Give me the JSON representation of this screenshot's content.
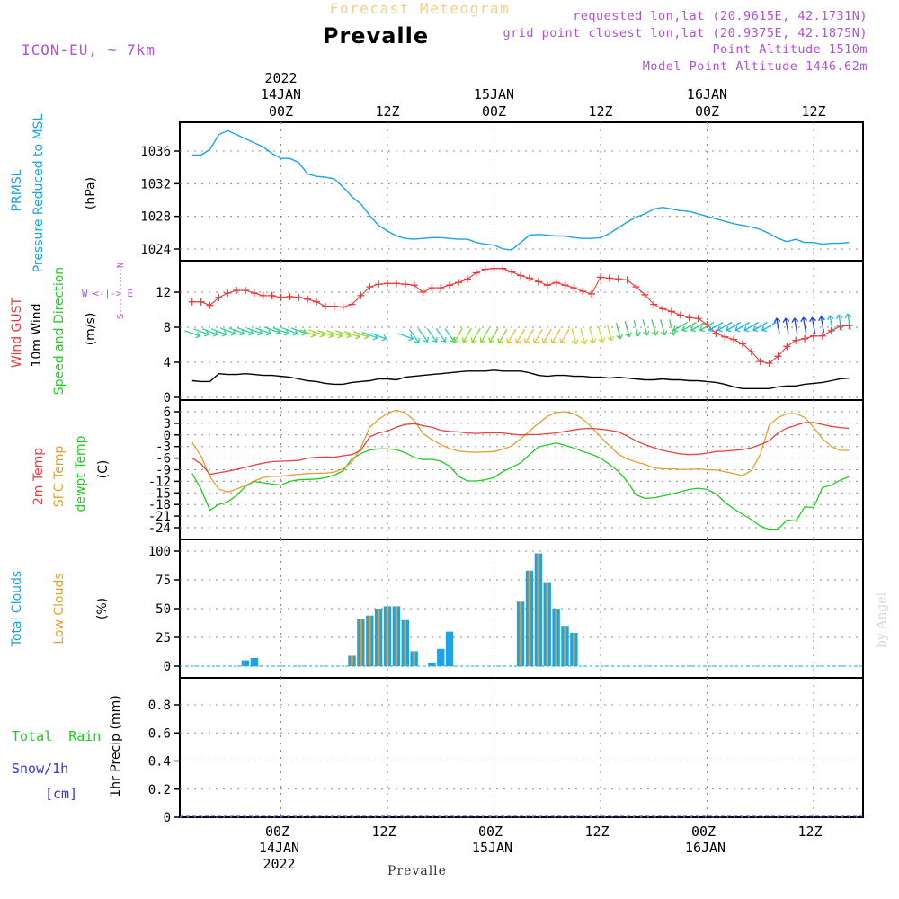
{
  "header": {
    "title": "Forecast Meteogram",
    "location": "Prevalle",
    "model": "ICON-EU, ~ 7km",
    "requested": "requested lon,lat (20.9615E, 42.1731N)",
    "gridpoint": "grid point closest lon,lat (20.9375E, 42.1875N)",
    "altitude": "Point Altitude 1510m",
    "model_altitude": "Model Point Altitude 1446.62m",
    "footer": "Prevalle",
    "watermark": "by Angel"
  },
  "time_axis": {
    "year": "2022",
    "ticks": [
      {
        "label": "00Z",
        "day": "14JAN",
        "year": "2022"
      },
      {
        "label": "12Z",
        "day": "",
        "year": ""
      },
      {
        "label": "00Z",
        "day": "15JAN",
        "year": ""
      },
      {
        "label": "12Z",
        "day": "",
        "year": ""
      },
      {
        "label": "00Z",
        "day": "16JAN",
        "year": ""
      },
      {
        "label": "12Z",
        "day": "",
        "year": ""
      }
    ]
  },
  "panel_labels": {
    "pressure": [
      "PRMSL",
      "Pressure Reduced to MSL",
      "(hPa)"
    ],
    "wind": [
      "Wind GUST",
      "10m Wind",
      "Speed and Direction",
      "(m/s)"
    ],
    "wind_compass": [
      "N",
      "W <-|-> E",
      "S"
    ],
    "temp": [
      "2m Temp",
      "SFC Temp",
      "dewpt Temp",
      "(C)"
    ],
    "clouds": [
      "Total Clouds",
      "Low Clouds",
      "(%)"
    ],
    "precip": [
      "Total  Rain",
      "Snow/1h",
      "[cm]",
      "1hr Precip (mm)"
    ]
  },
  "colors": {
    "pressure": "#1aa3e6",
    "gust": "#e83a3a",
    "wind": "#000000",
    "t2m": "#e84040",
    "sfc": "#e0a030",
    "dewpt": "#20cc20",
    "total_clouds": "#1aa3e6",
    "low_clouds": "#e0a030",
    "title": "#f2cf8a",
    "info": "#b050d8",
    "rain": "#20cc20",
    "snow": "#3333ee"
  },
  "chart_data": [
    {
      "type": "line",
      "name": "pressure",
      "ylabel": "(hPa)",
      "x_unit": "hours from 14JAN 00Z",
      "ylim": [
        1022,
        1039
      ],
      "yticks": [
        1024,
        1028,
        1032,
        1036
      ],
      "x": [
        -10,
        -9,
        -8,
        -7,
        -6,
        -5,
        -4,
        -3,
        -2,
        -1,
        0,
        1,
        2,
        3,
        4,
        5,
        6,
        7,
        8,
        9,
        10,
        11,
        12,
        13,
        14,
        15,
        16,
        17,
        18,
        19,
        20,
        21,
        22,
        23,
        24,
        25,
        26,
        27,
        28,
        29,
        30,
        31,
        32,
        33,
        34,
        35,
        36,
        37,
        38,
        39,
        40,
        41,
        42,
        43,
        44,
        45,
        46,
        47,
        48,
        49,
        50,
        51,
        52,
        53,
        54,
        55,
        56,
        57,
        58,
        59,
        60,
        61,
        62,
        63,
        64
      ],
      "series": [
        {
          "values": [
            1035.5,
            1035.5,
            1036.2,
            1038,
            1038.5,
            1038,
            1037.5,
            1037,
            1036.5,
            1035.7,
            1035.1,
            1035.1,
            1034.6,
            1033.2,
            1032.9,
            1032.8,
            1032.6,
            1031.6,
            1030.4,
            1029.5,
            1028.1,
            1026.9,
            1026.2,
            1025.6,
            1025.3,
            1025.2,
            1025.3,
            1025.4,
            1025.4,
            1025.3,
            1025.2,
            1025.2,
            1024.8,
            1024.6,
            1024.5,
            1024,
            1023.9,
            1024.8,
            1025.7,
            1025.8,
            1025.7,
            1025.6,
            1025.6,
            1025.4,
            1025.3,
            1025.3,
            1025.4,
            1025.9,
            1026.6,
            1027.3,
            1027.9,
            1028.3,
            1028.9,
            1029.1,
            1028.9,
            1028.7,
            1028.6,
            1028.3,
            1028,
            1027.7,
            1027.4,
            1027.1,
            1026.9,
            1026.7,
            1026.4,
            1025.9,
            1025.3,
            1024.9,
            1025.2,
            1024.8,
            1024.8,
            1024.6,
            1024.7,
            1024.7,
            1024.8
          ]
        }
      ]
    },
    {
      "type": "line",
      "name": "wind",
      "ylabel": "(m/s)",
      "ylim": [
        0,
        15.5
      ],
      "yticks": [
        0,
        4,
        8,
        12
      ],
      "x": [
        -10,
        -9,
        -8,
        -7,
        -6,
        -5,
        -4,
        -3,
        -2,
        -1,
        0,
        1,
        2,
        3,
        4,
        5,
        6,
        7,
        8,
        9,
        10,
        11,
        12,
        13,
        14,
        15,
        16,
        17,
        18,
        19,
        20,
        21,
        22,
        23,
        24,
        25,
        26,
        27,
        28,
        29,
        30,
        31,
        32,
        33,
        34,
        35,
        36,
        37,
        38,
        39,
        40,
        41,
        42,
        43,
        44,
        45,
        46,
        47,
        48,
        49,
        50,
        51,
        52,
        53,
        54,
        55,
        56,
        57,
        58,
        59,
        60,
        61,
        62,
        63,
        64
      ],
      "series": [
        {
          "name": "Wind GUST",
          "values": [
            10.9,
            10.9,
            10.5,
            11.4,
            11.9,
            12.2,
            12.2,
            11.9,
            11.6,
            11.6,
            11.4,
            11.5,
            11.4,
            11.2,
            10.9,
            10.4,
            10.4,
            10.3,
            10.6,
            11.6,
            12.6,
            12.9,
            13,
            13,
            12.9,
            12.8,
            12,
            12.5,
            12.5,
            12.8,
            13.1,
            13.5,
            14.2,
            14.6,
            14.7,
            14.7,
            14.3,
            13.9,
            13.6,
            13.2,
            12.8,
            13.1,
            12.8,
            12.5,
            12.1,
            11.8,
            13.7,
            13.6,
            13.5,
            13.4,
            12.6,
            11.7,
            10.6,
            10.1,
            9.8,
            9.4,
            9.1,
            9,
            8.3,
            7.3,
            6.9,
            6.6,
            6.1,
            5.2,
            4.1,
            3.9,
            4.7,
            5.8,
            6.5,
            6.7,
            7,
            7,
            7.6,
            8.1,
            8.2
          ]
        },
        {
          "name": "10m Wind",
          "values": [
            1.9,
            1.8,
            1.8,
            2.7,
            2.6,
            2.6,
            2.7,
            2.6,
            2.5,
            2.5,
            2.4,
            2.3,
            2.1,
            1.9,
            1.8,
            1.6,
            1.5,
            1.5,
            1.7,
            1.8,
            1.9,
            2.1,
            2.1,
            2,
            2.3,
            2.4,
            2.5,
            2.6,
            2.7,
            2.8,
            2.9,
            3,
            3,
            3,
            3.1,
            3,
            3,
            3,
            2.8,
            2.5,
            2.4,
            2.5,
            2.5,
            2.4,
            2.4,
            2.3,
            2.3,
            2.2,
            2.3,
            2.2,
            2.1,
            2,
            2,
            2.1,
            2,
            2,
            1.9,
            1.9,
            1.8,
            1.7,
            1.5,
            1.2,
            1,
            1,
            1,
            1,
            1.2,
            1.3,
            1.3,
            1.5,
            1.6,
            1.7,
            1.9,
            2.1,
            2.2
          ]
        },
        {
          "name": "Speed and Direction",
          "values": [
            7.3,
            7.5,
            7.5,
            7.5,
            7.6,
            7.6,
            7.6,
            7.6,
            7.6,
            7.7,
            7.6,
            7.6,
            7.6,
            7.4,
            7.4,
            7.3,
            7.3,
            7.3,
            7.2,
            7.2,
            7.1,
            7,
            7,
            7,
            7,
            7,
            7.1,
            7.1,
            7.1,
            7.1,
            7.1,
            7.1,
            7.1,
            7.1,
            7.1,
            7,
            7,
            7,
            7,
            7,
            7,
            7,
            7,
            7,
            7,
            7.1,
            7.2,
            7.4,
            7.6,
            7.8,
            7.9,
            8,
            8,
            8,
            8,
            8.1,
            8.1,
            8.1,
            8.1,
            8.1,
            8.1,
            8.1,
            8.1,
            8.1,
            8.1,
            8.1,
            8.1,
            8.1,
            8.1,
            8.2,
            8.2,
            8.3,
            8.4,
            8.5,
            8.6
          ]
        }
      ]
    },
    {
      "type": "line",
      "name": "temperature",
      "ylabel": "(C)",
      "ylim": [
        -25.5,
        8
      ],
      "yticks": [
        -24,
        -21,
        -18,
        -15,
        -12,
        -9,
        -6,
        -3,
        0,
        3,
        6
      ],
      "x": [
        -10,
        -9,
        -8,
        -7,
        -6,
        -5,
        -4,
        -3,
        -2,
        -1,
        0,
        1,
        2,
        3,
        4,
        5,
        6,
        7,
        8,
        9,
        10,
        11,
        12,
        13,
        14,
        15,
        16,
        17,
        18,
        19,
        20,
        21,
        22,
        23,
        24,
        25,
        26,
        27,
        28,
        29,
        30,
        31,
        32,
        33,
        34,
        35,
        36,
        37,
        38,
        39,
        40,
        41,
        42,
        43,
        44,
        45,
        46,
        47,
        48,
        49,
        50,
        51,
        52,
        53,
        54,
        55,
        56,
        57,
        58,
        59,
        60,
        61,
        62,
        63,
        64
      ],
      "series": [
        {
          "name": "2m Temp",
          "values": [
            -6,
            -7.5,
            -10.2,
            -9.8,
            -9.4,
            -8.9,
            -8.4,
            -7.8,
            -7.3,
            -6.9,
            -6.8,
            -6.7,
            -6.6,
            -6,
            -5.8,
            -5.7,
            -5.8,
            -5.4,
            -5.1,
            -4,
            -0.5,
            0.5,
            1,
            2,
            2.7,
            2.9,
            2.4,
            2,
            1.2,
            0.9,
            0.8,
            0.5,
            0.4,
            0.5,
            0.6,
            0.5,
            0.2,
            0,
            0.1,
            0.1,
            0.3,
            0.5,
            0.9,
            1.3,
            1.6,
            1.7,
            1.5,
            1.2,
            0.8,
            -0.3,
            -1.5,
            -2.5,
            -3.3,
            -4,
            -4.5,
            -4.9,
            -5.1,
            -5,
            -4.7,
            -4.3,
            -4.2,
            -4,
            -3.8,
            -3.3,
            -2.5,
            -1.5,
            0.5,
            1.8,
            2.5,
            3.2,
            3.2,
            2.7,
            2.2,
            1.9,
            1.7
          ]
        },
        {
          "name": "SFC Temp",
          "values": [
            -2,
            -5.5,
            -10.8,
            -14,
            -14.8,
            -14,
            -13.1,
            -11.9,
            -11,
            -10.7,
            -10.7,
            -10.4,
            -10.2,
            -10,
            -9.9,
            -9.9,
            -9.6,
            -8.8,
            -7,
            -3.3,
            2,
            4,
            5.6,
            6.4,
            5.7,
            3.8,
            0.4,
            -1.2,
            -2.5,
            -3.5,
            -4.2,
            -4.4,
            -4.5,
            -4.4,
            -4.3,
            -3.7,
            -2.8,
            -1,
            1,
            3,
            4.8,
            5.8,
            6,
            5.5,
            4.1,
            2,
            -0.5,
            -2.8,
            -5,
            -6.2,
            -7,
            -7.6,
            -8.5,
            -8.8,
            -8.8,
            -8.9,
            -8.9,
            -8.8,
            -9,
            -9.1,
            -9.5,
            -10,
            -10.5,
            -9.2,
            -5,
            2.5,
            4.5,
            5.5,
            5.5,
            4.5,
            2,
            -1,
            -3,
            -4,
            -4
          ]
        },
        {
          "name": "dewpt Temp",
          "values": [
            -10,
            -14,
            -19.5,
            -18,
            -17.3,
            -15.7,
            -13.3,
            -12,
            -12.4,
            -12.7,
            -13,
            -12,
            -11.6,
            -11.5,
            -11.4,
            -11.1,
            -10.4,
            -9.3,
            -6.2,
            -4.8,
            -3.9,
            -3.6,
            -3.6,
            -3.8,
            -4.6,
            -5.8,
            -6.4,
            -6.3,
            -6.8,
            -8.1,
            -10.7,
            -11.9,
            -11.9,
            -11.6,
            -11,
            -9.5,
            -8.4,
            -7.2,
            -5.1,
            -3.1,
            -2.6,
            -2.1,
            -2.7,
            -3.4,
            -4.3,
            -5,
            -6,
            -7.6,
            -9.4,
            -12,
            -15.5,
            -16.4,
            -16.3,
            -15.8,
            -15.3,
            -14.7,
            -14.1,
            -13.8,
            -14.1,
            -15.2,
            -17.4,
            -19.1,
            -20.5,
            -21.9,
            -23.6,
            -24.4,
            -24.4,
            -22,
            -22.3,
            -18.6,
            -18.8,
            -13.6,
            -13,
            -11.7,
            -10.8
          ]
        }
      ]
    },
    {
      "type": "bar",
      "name": "clouds",
      "ylabel": "(%)",
      "ylim": [
        -5,
        108
      ],
      "yticks": [
        0,
        25,
        50,
        75,
        100
      ],
      "x": [
        -4,
        -3,
        8,
        9,
        10,
        11,
        12,
        13,
        14,
        15,
        16,
        17,
        18,
        19,
        20,
        21,
        22,
        23,
        24,
        25,
        26,
        27,
        28,
        29,
        30,
        31,
        32,
        33,
        34,
        35
      ],
      "series": [
        {
          "name": "Total Clouds",
          "values": [
            5,
            7,
            9,
            41,
            44,
            50,
            52,
            52,
            40,
            13,
            0,
            3,
            15,
            30,
            0,
            0,
            0,
            0,
            0,
            0,
            0,
            56,
            83,
            98,
            73,
            50,
            35,
            29,
            0,
            0
          ]
        },
        {
          "name": "Low Clouds",
          "values": [
            0,
            0,
            9,
            41,
            44,
            50,
            52,
            52,
            40,
            13,
            0,
            0,
            0,
            0,
            0,
            0,
            0,
            0,
            0,
            0,
            0,
            56,
            83,
            98,
            73,
            50,
            35,
            29,
            0,
            0
          ]
        }
      ]
    },
    {
      "type": "bar",
      "name": "precipitation",
      "ylabel": "1hr Precip (mm)",
      "ylim": [
        0,
        1
      ],
      "yticks": [
        0,
        0.2,
        0.4,
        0.6,
        0.8
      ],
      "series": [
        {
          "name": "Total  Rain",
          "values": [
            0
          ]
        },
        {
          "name": "Snow/1h",
          "values": [
            0
          ]
        }
      ]
    }
  ]
}
